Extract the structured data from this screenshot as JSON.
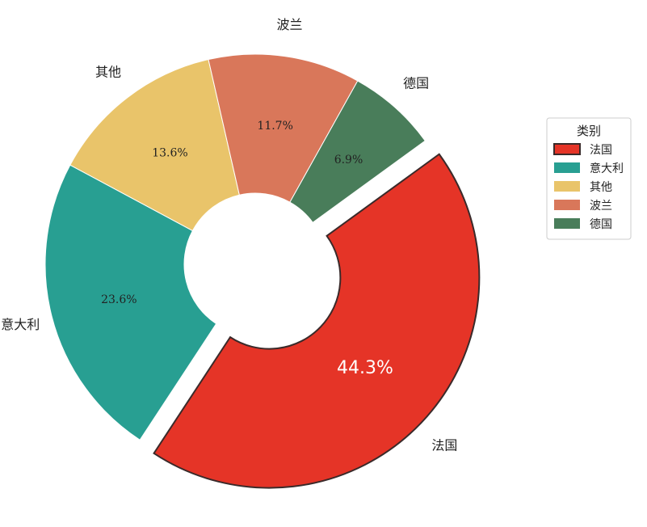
{
  "chart_data": {
    "type": "pie",
    "donut": true,
    "categories": [
      "法国",
      "意大利",
      "其他",
      "波兰",
      "德国"
    ],
    "values": [
      44.3,
      23.6,
      13.6,
      11.7,
      6.9
    ],
    "value_labels": [
      "44.3%",
      "23.6%",
      "13.6%",
      "11.7%",
      "6.9%"
    ],
    "colors": [
      "#e53427",
      "#289f92",
      "#e9c46a",
      "#d9775a",
      "#497d5a"
    ],
    "exploded": "法国",
    "legend": {
      "title": "类别",
      "placement": "right",
      "entries": [
        "法国",
        "意大利",
        "其他",
        "波兰",
        "德国"
      ]
    }
  }
}
